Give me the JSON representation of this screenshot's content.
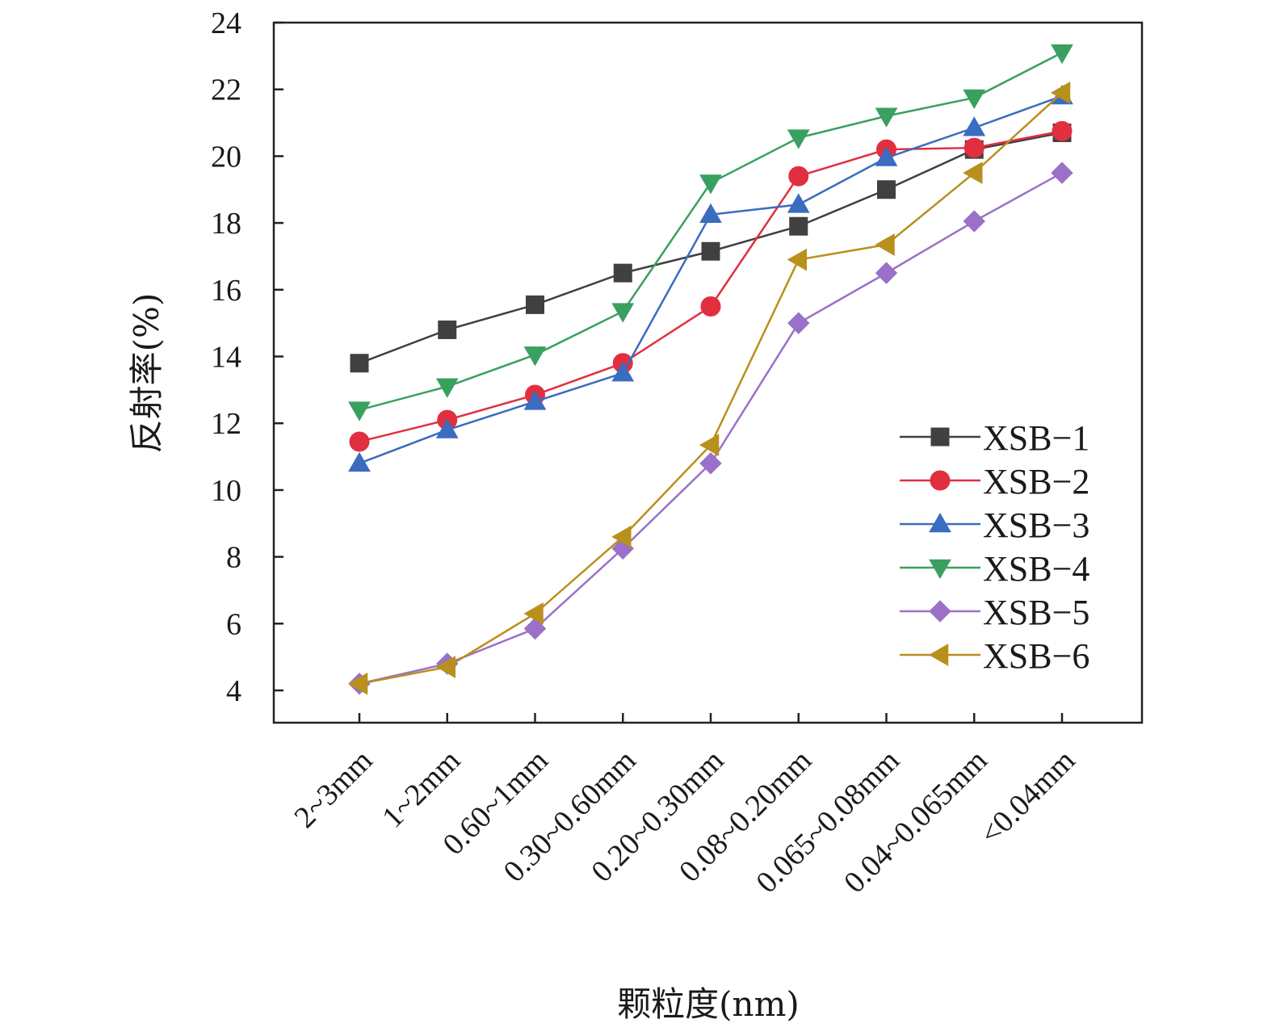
{
  "chart_data": {
    "type": "line",
    "xlabel": "颗粒度(nm)",
    "ylabel": "反射率(%)",
    "ylim": [
      4,
      24
    ],
    "yticks": [
      4,
      6,
      8,
      10,
      12,
      14,
      16,
      18,
      20,
      22,
      24
    ],
    "categories": [
      "2~3mm",
      "1~2mm",
      "0.60~1mm",
      "0.30~0.60mm",
      "0.20~0.30mm",
      "0.08~0.20mm",
      "0.065~0.08mm",
      "0.04~0.065mm",
      "<0.04mm"
    ],
    "legend_position": "right",
    "series": [
      {
        "name": "XSB−1",
        "color": "#404040",
        "marker": "square",
        "values": [
          13.8,
          14.8,
          15.55,
          16.5,
          17.15,
          17.9,
          19.0,
          20.2,
          20.7
        ]
      },
      {
        "name": "XSB−2",
        "color": "#e03040",
        "marker": "circle",
        "values": [
          11.45,
          12.1,
          12.85,
          13.8,
          15.5,
          19.4,
          20.2,
          20.25,
          20.75
        ]
      },
      {
        "name": "XSB−3",
        "color": "#3a6cc0",
        "marker": "triangle-up",
        "values": [
          10.8,
          11.8,
          12.65,
          13.5,
          18.25,
          18.55,
          19.95,
          20.85,
          21.8
        ]
      },
      {
        "name": "XSB−4",
        "color": "#3aa060",
        "marker": "triangle-down",
        "values": [
          12.4,
          13.1,
          14.05,
          15.35,
          19.2,
          20.55,
          21.2,
          21.75,
          23.1
        ]
      },
      {
        "name": "XSB−5",
        "color": "#9a70c8",
        "marker": "diamond",
        "values": [
          4.2,
          4.8,
          5.85,
          8.25,
          10.8,
          15.0,
          16.5,
          18.05,
          19.5
        ]
      },
      {
        "name": "XSB−6",
        "color": "#b8901c",
        "marker": "triangle-left",
        "values": [
          4.2,
          4.7,
          6.3,
          8.6,
          11.35,
          16.9,
          17.35,
          19.5,
          21.9
        ]
      }
    ]
  }
}
